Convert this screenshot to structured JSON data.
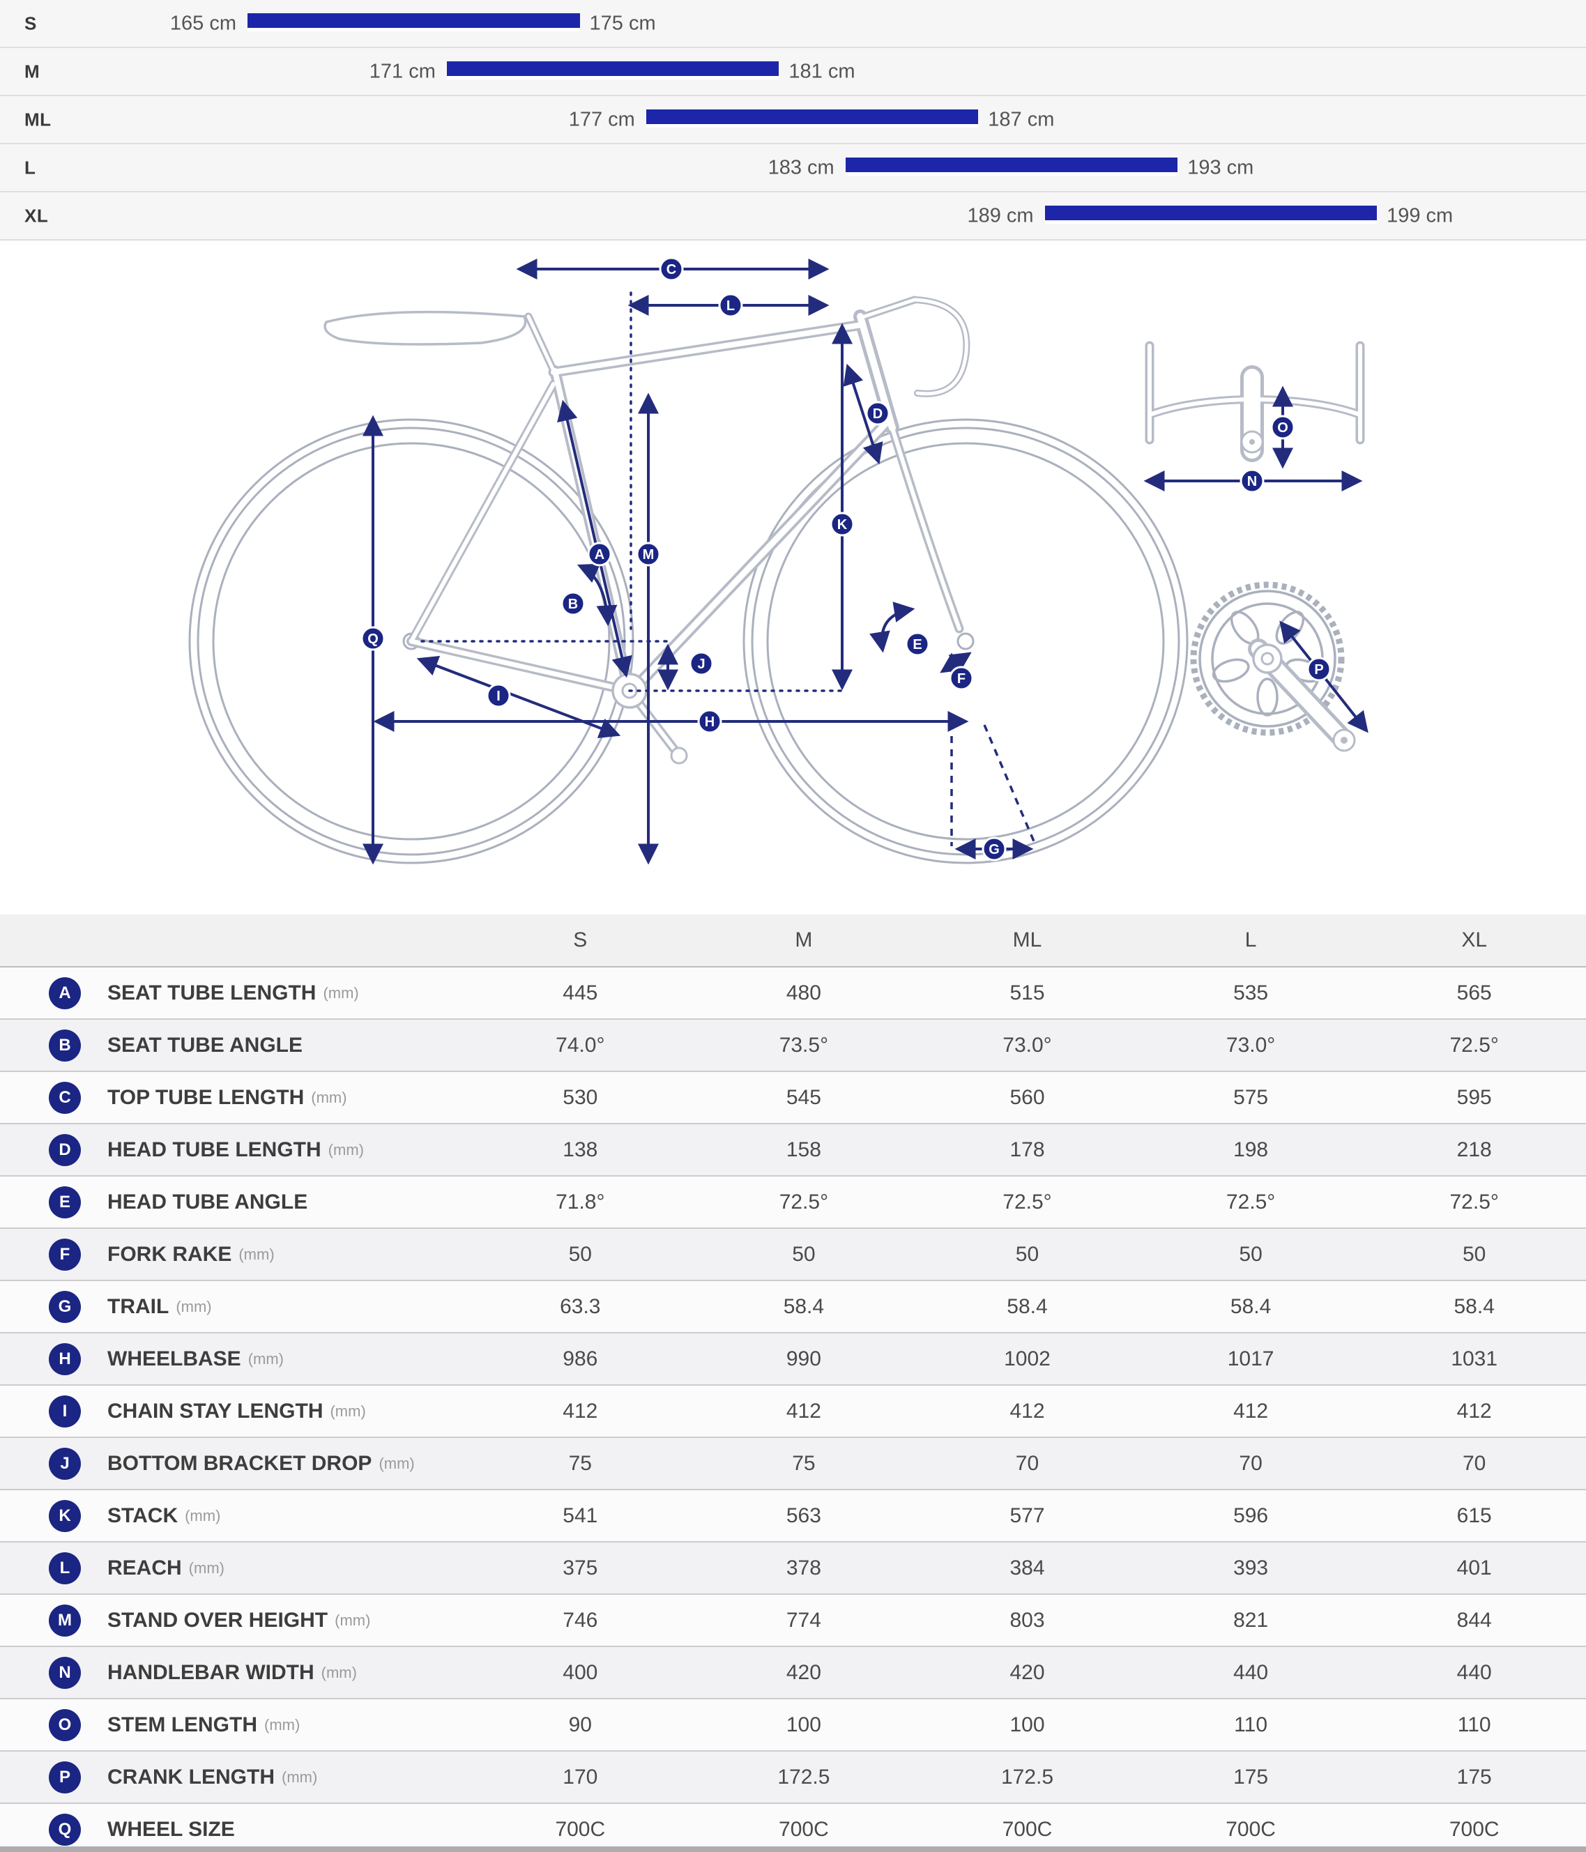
{
  "colors": {
    "navy": "#232c7c",
    "badge_navy": "#1b2583",
    "bar_blue": "#1d26a8",
    "art_gray": "#aab0bd"
  },
  "size_chart": {
    "rows": [
      {
        "size": "S",
        "min_cm": 165,
        "max_cm": 175,
        "min_label": "165 cm",
        "max_label": "175 cm"
      },
      {
        "size": "M",
        "min_cm": 171,
        "max_cm": 181,
        "min_label": "171 cm",
        "max_label": "181 cm"
      },
      {
        "size": "ML",
        "min_cm": 177,
        "max_cm": 187,
        "min_label": "177 cm",
        "max_label": "187 cm"
      },
      {
        "size": "L",
        "min_cm": 183,
        "max_cm": 193,
        "min_label": "183 cm",
        "max_label": "193 cm"
      },
      {
        "size": "XL",
        "min_cm": 189,
        "max_cm": 199,
        "min_label": "189 cm",
        "max_label": "199 cm"
      }
    ]
  },
  "chart_data": {
    "type": "bar",
    "orientation": "horizontal-range",
    "categories": [
      "S",
      "M",
      "ML",
      "L",
      "XL"
    ],
    "series": [
      {
        "name": "rider height range (cm)",
        "ranges": [
          [
            165,
            175
          ],
          [
            171,
            181
          ],
          [
            177,
            187
          ],
          [
            183,
            193
          ],
          [
            189,
            199
          ]
        ]
      }
    ],
    "xlim": [
      165,
      199
    ],
    "title": "",
    "xlabel": "",
    "ylabel": "",
    "grid": false,
    "legend": "none"
  },
  "diagram": {
    "badges": [
      "A",
      "B",
      "C",
      "D",
      "E",
      "F",
      "G",
      "H",
      "I",
      "J",
      "K",
      "L",
      "M",
      "N",
      "O",
      "P",
      "Q"
    ]
  },
  "table": {
    "columns": [
      "S",
      "M",
      "ML",
      "L",
      "XL"
    ],
    "rows": [
      {
        "key": "A",
        "label": "SEAT TUBE LENGTH",
        "unit": "(mm)",
        "values": [
          "445",
          "480",
          "515",
          "535",
          "565"
        ]
      },
      {
        "key": "B",
        "label": "SEAT TUBE ANGLE",
        "unit": "",
        "values": [
          "74.0°",
          "73.5°",
          "73.0°",
          "73.0°",
          "72.5°"
        ]
      },
      {
        "key": "C",
        "label": "TOP TUBE LENGTH",
        "unit": "(mm)",
        "values": [
          "530",
          "545",
          "560",
          "575",
          "595"
        ]
      },
      {
        "key": "D",
        "label": "HEAD TUBE LENGTH",
        "unit": "(mm)",
        "values": [
          "138",
          "158",
          "178",
          "198",
          "218"
        ]
      },
      {
        "key": "E",
        "label": "HEAD TUBE ANGLE",
        "unit": "",
        "values": [
          "71.8°",
          "72.5°",
          "72.5°",
          "72.5°",
          "72.5°"
        ]
      },
      {
        "key": "F",
        "label": "FORK RAKE",
        "unit": "(mm)",
        "values": [
          "50",
          "50",
          "50",
          "50",
          "50"
        ]
      },
      {
        "key": "G",
        "label": "TRAIL",
        "unit": "(mm)",
        "values": [
          "63.3",
          "58.4",
          "58.4",
          "58.4",
          "58.4"
        ]
      },
      {
        "key": "H",
        "label": "WHEELBASE",
        "unit": "(mm)",
        "values": [
          "986",
          "990",
          "1002",
          "1017",
          "1031"
        ]
      },
      {
        "key": "I",
        "label": "CHAIN STAY LENGTH",
        "unit": "(mm)",
        "values": [
          "412",
          "412",
          "412",
          "412",
          "412"
        ]
      },
      {
        "key": "J",
        "label": "BOTTOM BRACKET DROP",
        "unit": "(mm)",
        "values": [
          "75",
          "75",
          "70",
          "70",
          "70"
        ]
      },
      {
        "key": "K",
        "label": "STACK",
        "unit": "(mm)",
        "values": [
          "541",
          "563",
          "577",
          "596",
          "615"
        ]
      },
      {
        "key": "L",
        "label": "REACH",
        "unit": "(mm)",
        "values": [
          "375",
          "378",
          "384",
          "393",
          "401"
        ]
      },
      {
        "key": "M",
        "label": "STAND OVER HEIGHT",
        "unit": "(mm)",
        "values": [
          "746",
          "774",
          "803",
          "821",
          "844"
        ]
      },
      {
        "key": "N",
        "label": "HANDLEBAR WIDTH",
        "unit": "(mm)",
        "values": [
          "400",
          "420",
          "420",
          "440",
          "440"
        ]
      },
      {
        "key": "O",
        "label": "STEM LENGTH",
        "unit": "(mm)",
        "values": [
          "90",
          "100",
          "100",
          "110",
          "110"
        ]
      },
      {
        "key": "P",
        "label": "CRANK LENGTH",
        "unit": "(mm)",
        "values": [
          "170",
          "172.5",
          "172.5",
          "175",
          "175"
        ]
      },
      {
        "key": "Q",
        "label": "WHEEL SIZE",
        "unit": "",
        "values": [
          "700C",
          "700C",
          "700C",
          "700C",
          "700C"
        ]
      }
    ]
  }
}
